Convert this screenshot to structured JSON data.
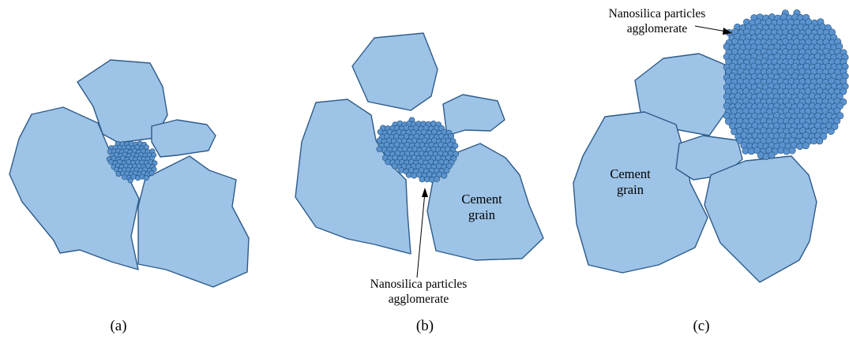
{
  "colors": {
    "grain_fill": "#9dc3e6",
    "grain_outline": "#2e5b8a",
    "particle_fill": "#5b93cf",
    "particle_outline": "#1f4e79",
    "background": "#ffffff"
  },
  "panels": [
    {
      "label": "(a)"
    },
    {
      "label": "(b)",
      "grain_label_line1": "Cement",
      "grain_label_line2": "grain",
      "agglomerate_label_line1": "Nanosilica particles",
      "agglomerate_label_line2": "agglomerate"
    },
    {
      "label": "(c)",
      "grain_label_line1": "Cement",
      "grain_label_line2": "grain",
      "agglomerate_label_line1": "Nanosilica particles",
      "agglomerate_label_line2": "agglomerate"
    }
  ]
}
